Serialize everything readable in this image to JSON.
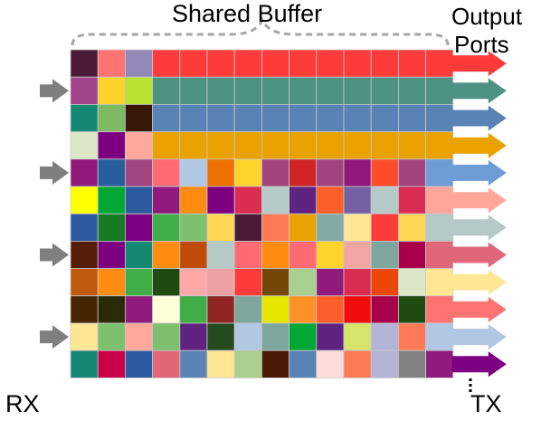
{
  "labels": {
    "title": "Shared Buffer",
    "output_ports_line1": "Output",
    "output_ports_line2": "Ports",
    "rx": "RX",
    "tx": "TX"
  },
  "colors": {
    "input_arrow": "#7f7f7f",
    "brace": "#a6a6a6",
    "cell_border": "#c8c8c8"
  },
  "input_arrow_rows": [
    1,
    4,
    7,
    10
  ],
  "grid": [
    [
      "#4a1a36",
      "#ff7473",
      "#9188b8",
      "#fe3b3b",
      "#fe3b3b",
      "#fe3b3b",
      "#fe3b3b",
      "#fe3b3b",
      "#fe3b3b",
      "#fe3b3b",
      "#fe3b3b",
      "#fe3b3b",
      "#fe3b3b",
      "#fe3b3b"
    ],
    [
      "#a2448b",
      "#ffd42a",
      "#bae233",
      "#4e9284",
      "#4e9284",
      "#4e9284",
      "#4e9284",
      "#4e9284",
      "#4e9284",
      "#4e9284",
      "#4e9284",
      "#4e9284",
      "#4e9284",
      "#4e9284"
    ],
    [
      "#148873",
      "#7eba64",
      "#381708",
      "#5983b5",
      "#5983b5",
      "#5983b5",
      "#5983b5",
      "#5983b5",
      "#5983b5",
      "#5983b5",
      "#5983b5",
      "#5983b5",
      "#5983b5",
      "#5983b5"
    ],
    [
      "#dde8c9",
      "#7c0080",
      "#ffa89b",
      "#e9a200",
      "#e9a200",
      "#e9a200",
      "#e9a200",
      "#e9a200",
      "#e9a200",
      "#e9a200",
      "#e9a200",
      "#e9a200",
      "#e9a200",
      "#e9a200"
    ],
    [
      "#911a7c",
      "#275e9e",
      "#a1467e",
      "#fe6b73",
      "#b1c8e2",
      "#ec7101",
      "#fdd42a",
      "#a1447d",
      "#d02527",
      "#a1447d",
      "#93167b",
      "#fd4d2a",
      "#a1447d",
      "#6e9cd4"
    ],
    [
      "#ffff00",
      "#00a833",
      "#2b5b9e",
      "#911b7c",
      "#ff8b10",
      "#7c0080",
      "#db2c51",
      "#b5c9c6",
      "#5e2480",
      "#fe5e2a",
      "#7561a2",
      "#b5c9c6",
      "#db2c51",
      "#ffa69b"
    ],
    [
      "#2b5b9e",
      "#177a24",
      "#7c0080",
      "#40ad48",
      "#7fc06f",
      "#ffd755",
      "#4a1a36",
      "#fd7a56",
      "#e9a200",
      "#84aaa6",
      "#ffe695",
      "#fe3b3b",
      "#ffd755",
      "#b5c9c6"
    ],
    [
      "#561e09",
      "#7c0080",
      "#148873",
      "#ff8b10",
      "#c14c0a",
      "#b5c9c6",
      "#fe6b73",
      "#ff8b10",
      "#fe6b73",
      "#ffd42a",
      "#f2a6a4",
      "#7fa69e",
      "#a8004a",
      "#e0667a"
    ],
    [
      "#c05a0c",
      "#ff8b10",
      "#40ad48",
      "#1f4b10",
      "#ffa8a8",
      "#eea1a4",
      "#fe3b3b",
      "#744706",
      "#a9d08e",
      "#911b7c",
      "#db2c51",
      "#ec4708",
      "#dde8c9",
      "#ffe695"
    ],
    [
      "#462600",
      "#2a2a08",
      "#911b7c",
      "#ffffda",
      "#40ad48",
      "#8e2623",
      "#7fa69e",
      "#e6e600",
      "#ff9129",
      "#fe5e2a",
      "#f20d0d",
      "#a8004a",
      "#1f4b10",
      "#ff7473"
    ],
    [
      "#ffe695",
      "#7fc06f",
      "#ffa89b",
      "#7fc06f",
      "#5e2480",
      "#254a20",
      "#b1c8e2",
      "#7fa69e",
      "#00a833",
      "#5e2480",
      "#d7e46a",
      "#b3b4d6",
      "#fd7a56",
      "#b1c8e2"
    ],
    [
      "#148873",
      "#c90049",
      "#2b5b9e",
      "#e06678",
      "#5983b5",
      "#ffe695",
      "#a9d08e",
      "#4a1a06",
      "#5983b5",
      "#ffdcdc",
      "#fd7a56",
      "#b3b4d6",
      "#828282",
      "#911b7c"
    ]
  ],
  "output_arrow_colors": [
    "#fe3b3b",
    "#4e9284",
    "#5983b5",
    "#e9a200",
    "#6e9cd4",
    "#ffa69b",
    "#b5c9c6",
    "#e0667a",
    "#ffe695",
    "#ff7473",
    "#b1c8e2",
    "#7c0080"
  ]
}
